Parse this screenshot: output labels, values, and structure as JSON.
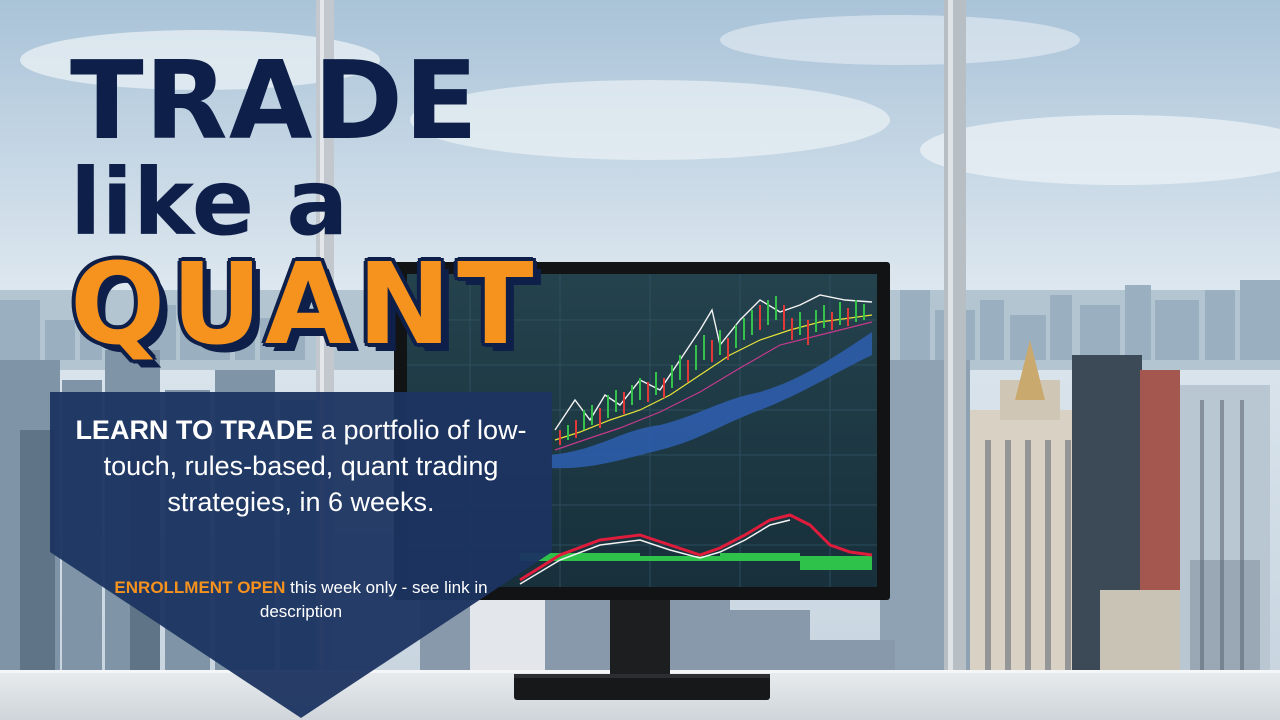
{
  "headline": {
    "line1": "TRADE",
    "line2": "like a",
    "line3": "QUANT"
  },
  "banner": {
    "lead_emphasis": "LEARN TO TRADE",
    "lead_text": " a portfolio of low-touch, rules-based, quant trading strategies, in 6 weeks.",
    "cta_emphasis": "ENROLLMENT OPEN",
    "cta_text": " this week only - see link in description"
  },
  "colors": {
    "navy": "#0e1f4a",
    "orange": "#f6921e",
    "banner_blue": "#1c3461"
  }
}
